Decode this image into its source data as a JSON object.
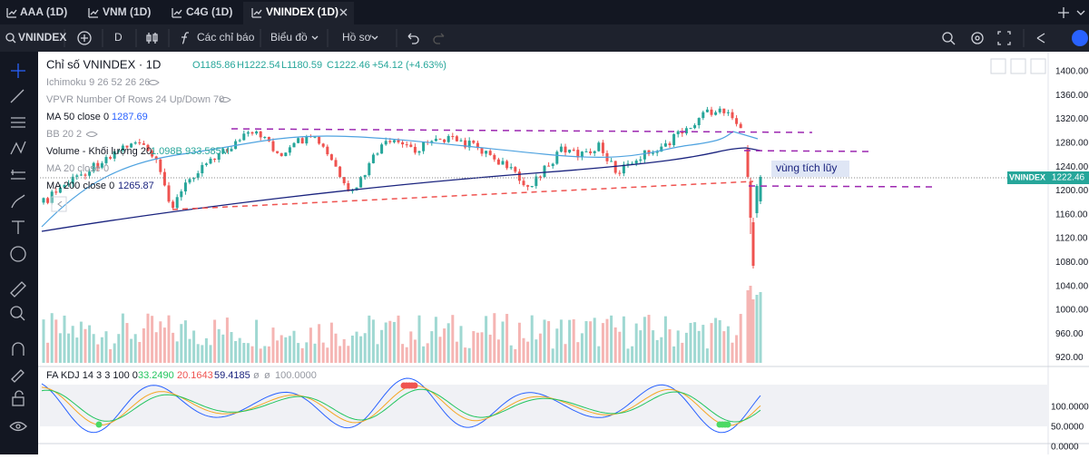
{
  "tabs": [
    {
      "label": "AAA (1D)"
    },
    {
      "label": "VNM (1D)"
    },
    {
      "label": "C4G (1D)"
    },
    {
      "label": "VNINDEX (1D)"
    }
  ],
  "toolbar": {
    "symbol": "VNINDEX",
    "interval": "D",
    "indicators": "Các chỉ báo",
    "chart": "Biểu đồ",
    "profile": "Hồ sơ"
  },
  "legend": {
    "title": "Chỉ số VNINDEX · 1D",
    "open": "O1185.86",
    "high": "H1222.54",
    "low": "L1180.59",
    "close": "C1222.46",
    "change": "+54.12 (+4.63%)",
    "ichimoku": "Ichimoku 9 26 52 26 26",
    "vpvr": "VPVR Number Of Rows 24 Up/Down 70",
    "ma50": "MA 50 close 0",
    "ma50_value": "1287.69",
    "bb": "BB 20 2",
    "volume": "Volume - Khối lượng 20",
    "volume_value": "1.098B",
    "volume_ma": "933.585M",
    "ma20": "MA 20 close 0",
    "ma200": "MA 200 close 0",
    "ma200_value": "1265.87"
  },
  "annotation": "vùng tích lũy",
  "price_tag": {
    "symbol": "VNINDEX",
    "value": "1222.46"
  },
  "price_axis": [
    "1400.00",
    "1360.00",
    "1320.00",
    "1280.00",
    "1240.00",
    "1200.00",
    "1160.00",
    "1120.00",
    "1080.00",
    "1040.00",
    "1000.00",
    "960.00",
    "920.00"
  ],
  "kdj": {
    "name": "FA KDJ 14 3 3 100 0",
    "k": "33.2490",
    "d": "20.1643",
    "j": "59.4185",
    "p1": "ø",
    "p2": "ø",
    "p3": "100.0000"
  },
  "kdj_axis": [
    "100.0000",
    "50.0000",
    "0.0000"
  ]
}
